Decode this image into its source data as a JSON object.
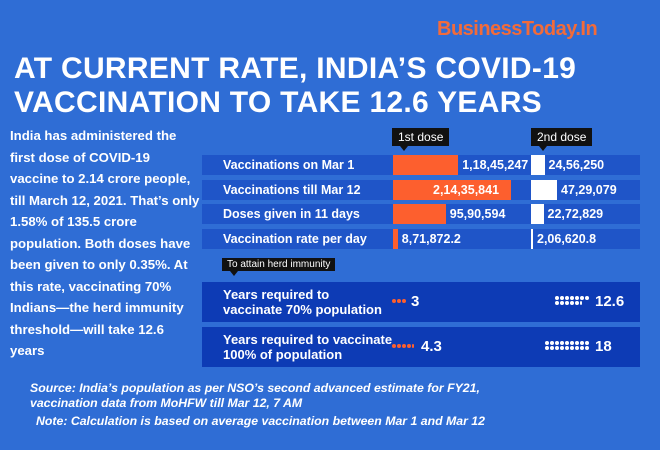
{
  "logo": "BusinessToday.In",
  "title": [
    "AT CURRENT RATE, INDIA’S COVID-19",
    "VACCINATION TO TAKE 12.6 YEARS"
  ],
  "paragraph": "India has administered the first dose of COVID-19 vaccine to 2.14 crore people, till March 12, 2021. That’s only 1.58% of 135.5 crore population. Both doses have been given to only 0.35%. At this rate, vaccinating 70% Indians—the herd immunity threshold—will take 12.6 years",
  "chart_data": {
    "type": "bar",
    "categories": [
      "Vaccinations on Mar 1",
      "Vaccinations till Mar 12",
      "Doses given in 11 days",
      "Vaccination rate per day"
    ],
    "series": [
      {
        "name": "1st dose",
        "values": [
          11845247,
          21435841,
          9590594,
          871872.2
        ],
        "labels": [
          "1,18,45,247",
          "2,14,35,841",
          "95,90,594",
          "8,71,872.2"
        ],
        "color": "#fd5f2e"
      },
      {
        "name": "2nd dose",
        "values": [
          2456250,
          4729079,
          2272829,
          206620.8
        ],
        "labels": [
          "24,56,250",
          "47,29,079",
          "22,72,829",
          "2,06,620.8"
        ],
        "color": "#ffffff"
      }
    ]
  },
  "herd": {
    "tag": "To attain herd immunity",
    "rows": [
      {
        "label": [
          "Years required to",
          "vaccinate 70% population"
        ],
        "first": 3,
        "first_label": "3",
        "second": 12.6,
        "second_label": "12.6"
      },
      {
        "label": [
          "Years required to vaccinate",
          "100% of population"
        ],
        "first": 4.3,
        "first_label": "4.3",
        "second": 18,
        "second_label": "18"
      }
    ]
  },
  "footer": [
    "Source: India’s population as per NSO’s second advanced estimate for FY21,",
    "vaccination data from MoHFW till Mar 12, 7 AM",
    "Note: Calculation is based on average vaccination between Mar 1 and Mar 12"
  ]
}
